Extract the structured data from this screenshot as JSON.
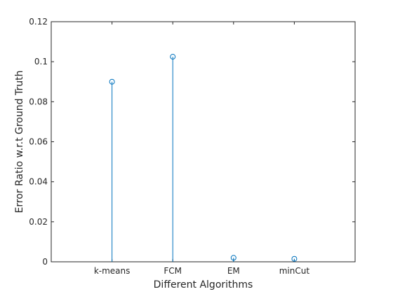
{
  "chart_data": {
    "type": "stem",
    "title": "",
    "xlabel": "Different Algorithms",
    "ylabel": "Error  Ratio w.r.t Ground Truth",
    "categories": [
      "k-means",
      "FCM",
      "EM",
      "minCut"
    ],
    "values": [
      0.09,
      0.1025,
      0.002,
      0.0015
    ],
    "xlim": [
      0,
      5
    ],
    "ylim": [
      0,
      0.12
    ],
    "yticks": [
      0,
      0.02,
      0.04,
      0.06,
      0.08,
      0.1,
      0.12
    ],
    "ytick_labels": [
      "0",
      "0.02",
      "0.04",
      "0.06",
      "0.08",
      "0.1",
      "0.12"
    ],
    "grid": false,
    "marker": "circle",
    "color": "#0072bd"
  }
}
